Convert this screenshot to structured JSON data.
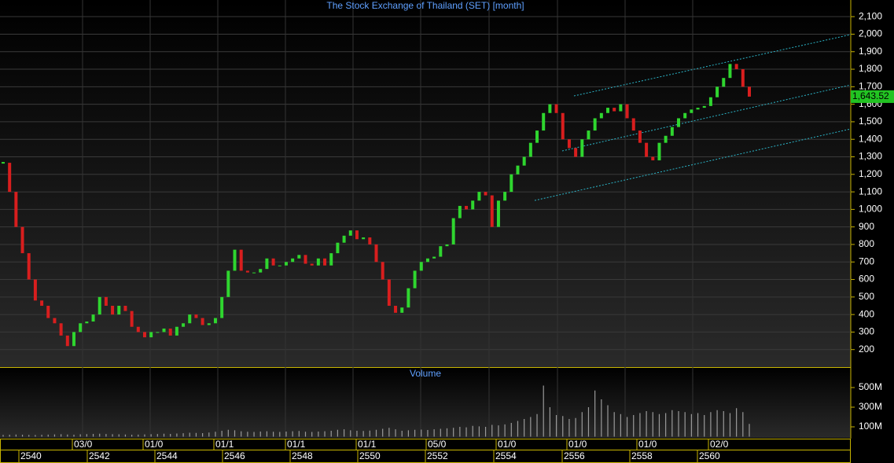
{
  "chart_data": {
    "type": "candlestick",
    "title": "The Stock Exchange of Thailand (SET) [month]",
    "up_color": "#2fd62f",
    "down_color": "#d81e1e",
    "grid": true,
    "ylim": [
      100,
      2195
    ],
    "yticks": [
      200,
      300,
      400,
      500,
      600,
      700,
      800,
      900,
      {
        "value": 1000,
        "label": "1,000"
      },
      {
        "value": 1100,
        "label": "1,100"
      },
      {
        "value": 1200,
        "label": "1,200"
      },
      {
        "value": 1300,
        "label": "1,300"
      },
      {
        "value": 1400,
        "label": "1,400"
      },
      {
        "value": 1500,
        "label": "1,500"
      },
      {
        "value": 1600,
        "label": "1,600"
      },
      {
        "value": 1700,
        "label": "1,700"
      },
      {
        "value": 1800,
        "label": "1,800"
      },
      {
        "value": 1900,
        "label": "1,900"
      },
      {
        "value": 2000,
        "label": "2,000"
      },
      {
        "value": 2100,
        "label": "2,100"
      }
    ],
    "last_price": {
      "value": 1643.52,
      "label": "1,643.52"
    },
    "closes": [
      1266,
      1100,
      900,
      750,
      600,
      480,
      450,
      380,
      350,
      280,
      220,
      300,
      350,
      360,
      400,
      500,
      450,
      400,
      450,
      420,
      330,
      300,
      270,
      300,
      300,
      320,
      280,
      330,
      350,
      400,
      380,
      340,
      350,
      380,
      500,
      650,
      770,
      650,
      640,
      640,
      660,
      720,
      680,
      680,
      700,
      720,
      740,
      690,
      680,
      720,
      680,
      750,
      810,
      850,
      880,
      830,
      840,
      800,
      700,
      600,
      450,
      410,
      440,
      550,
      650,
      700,
      720,
      730,
      790,
      800,
      950,
      1020,
      1000,
      1050,
      1100,
      1080,
      900,
      1050,
      1100,
      1200,
      1250,
      1300,
      1380,
      1450,
      1550,
      1600,
      1550,
      1400,
      1350,
      1300,
      1400,
      1450,
      1520,
      1550,
      1580,
      1560,
      1600,
      1520,
      1450,
      1380,
      1300,
      1280,
      1380,
      1420,
      1470,
      1520,
      1550,
      1570,
      1580,
      1590,
      1640,
      1700,
      1750,
      1830,
      1800,
      1700,
      1643.52
    ],
    "volume": {
      "title": "Volume",
      "color": "#9a9a9a",
      "ylim": [
        0,
        700
      ],
      "yticks": [
        {
          "value": 100,
          "label": "100M"
        },
        {
          "value": 300,
          "label": "300M"
        },
        {
          "value": 500,
          "label": "500M"
        }
      ],
      "values": [
        18,
        20,
        22,
        20,
        18,
        17,
        19,
        21,
        23,
        25,
        22,
        20,
        24,
        26,
        28,
        30,
        27,
        25,
        24,
        22,
        20,
        21,
        23,
        25,
        27,
        30,
        28,
        32,
        35,
        40,
        38,
        36,
        42,
        50,
        60,
        70,
        65,
        55,
        50,
        48,
        52,
        55,
        50,
        48,
        52,
        55,
        58,
        50,
        48,
        52,
        55,
        60,
        70,
        75,
        65,
        60,
        58,
        62,
        70,
        80,
        90,
        75,
        60,
        65,
        70,
        72,
        68,
        75,
        80,
        85,
        90,
        100,
        95,
        110,
        105,
        100,
        120,
        115,
        125,
        140,
        160,
        180,
        200,
        230,
        520,
        300,
        220,
        210,
        180,
        190,
        250,
        300,
        470,
        380,
        320,
        250,
        230,
        200,
        220,
        240,
        260,
        250,
        230,
        240,
        270,
        260,
        250,
        230,
        240,
        220,
        250,
        270,
        260,
        240,
        290,
        250,
        130
      ]
    },
    "x_dates": [
      "03/0",
      "01/0",
      "01/1",
      "01/1",
      "01/1",
      "05/0",
      "01/0",
      "01/0",
      "01/0",
      "02/0"
    ],
    "x_years": [
      "2540",
      "2542",
      "2544",
      "2546",
      "2548",
      "2550",
      "2552",
      "2554",
      "2556",
      "2558",
      "2560"
    ]
  }
}
